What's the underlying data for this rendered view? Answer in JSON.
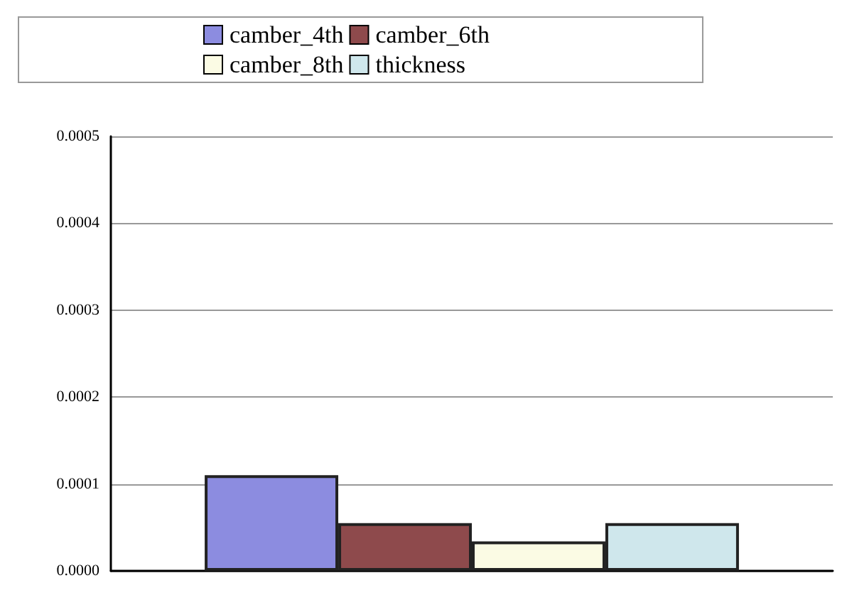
{
  "chart_data": {
    "type": "bar",
    "categories": [
      null
    ],
    "series": [
      {
        "name": "camber_4th",
        "color": "#8c8ce0",
        "values": [
          0.00011
        ]
      },
      {
        "name": "camber_6th",
        "color": "#8e4a4c",
        "values": [
          5.5e-05
        ]
      },
      {
        "name": "camber_8th",
        "color": "#fbfbe4",
        "values": [
          3.4e-05
        ]
      },
      {
        "name": "thickness",
        "color": "#cfe7ec",
        "values": [
          5.5e-05
        ]
      }
    ],
    "ylim": [
      0,
      0.0005
    ],
    "yticks": [
      {
        "value": 0,
        "label": "0.0000"
      },
      0.0001,
      0.0002,
      0.0003,
      0.0004,
      0.0005
    ],
    "grid": "y",
    "legend": "top"
  }
}
